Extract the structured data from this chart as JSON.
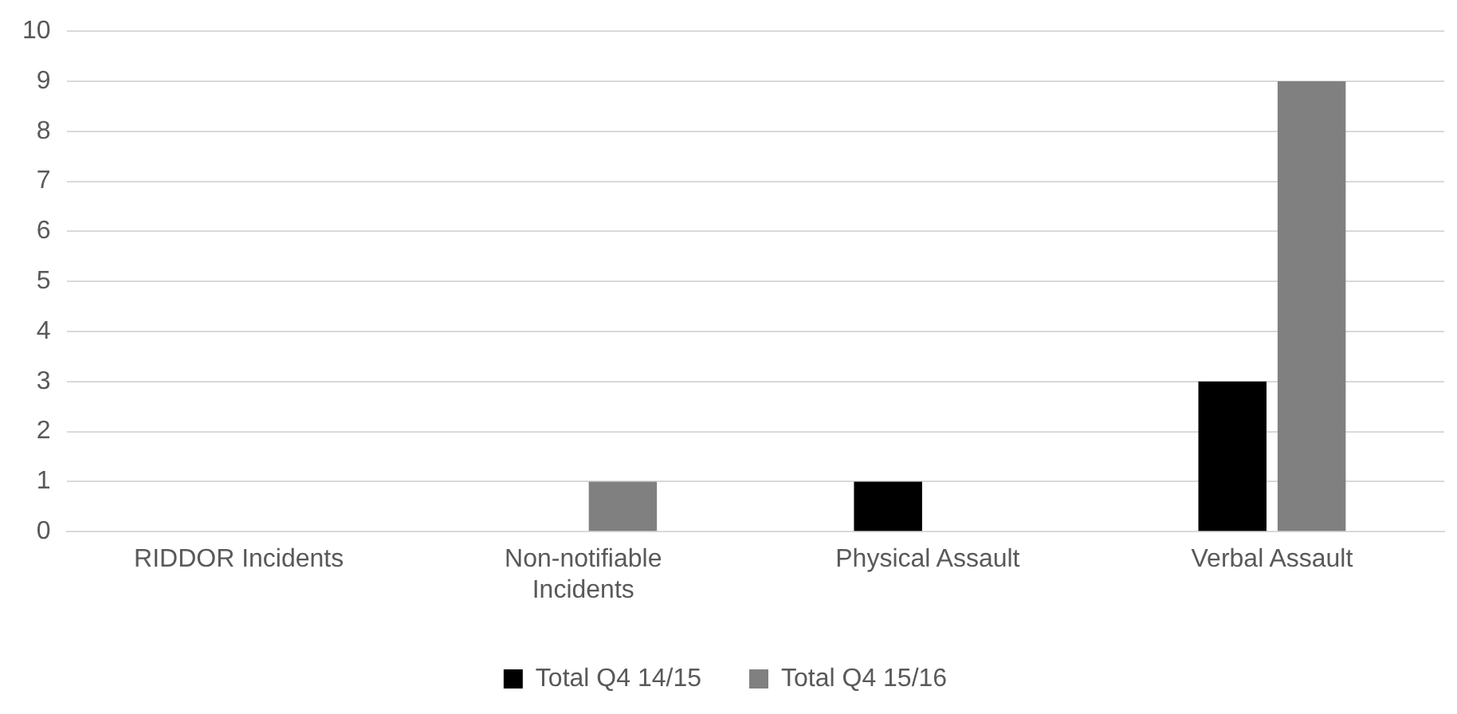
{
  "chart_data": {
    "type": "bar",
    "categories": [
      "RIDDOR Incidents",
      "Non-notifiable Incidents",
      "Physical Assault",
      "Verbal Assault"
    ],
    "series": [
      {
        "name": "Total Q4 14/15",
        "color": "#000000",
        "values": [
          0,
          0,
          1,
          3
        ]
      },
      {
        "name": "Total Q4 15/16",
        "color": "#808080",
        "values": [
          0,
          1,
          0,
          9
        ]
      }
    ],
    "ylim": [
      0,
      10
    ],
    "yticks": [
      0,
      1,
      2,
      3,
      4,
      5,
      6,
      7,
      8,
      9,
      10
    ],
    "grid": "y",
    "legend": "bottom"
  }
}
